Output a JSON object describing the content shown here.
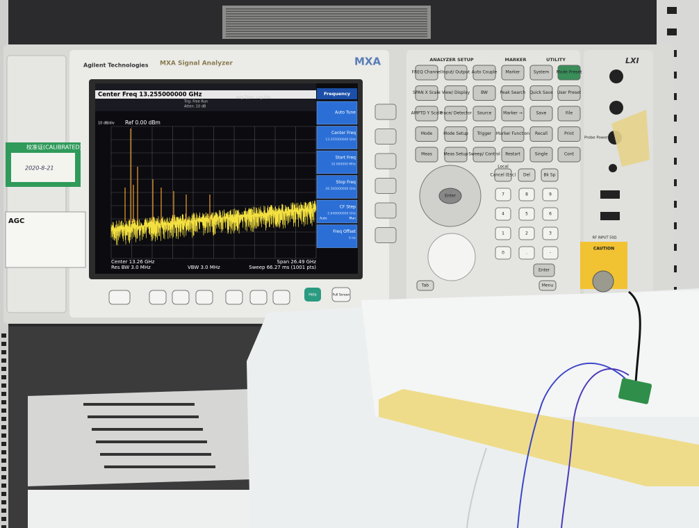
{
  "instrument": {
    "brand": "Agilent Technologies",
    "model_name": "MXA Signal Analyzer",
    "model": "MXA",
    "lxi": "LXI"
  },
  "screen": {
    "header": "Center Freq 13.255000000 GHz",
    "trigger": "Trig: Free Run",
    "atten": "Atten: 10 dB",
    "avg_type": "Avg Type: Log-Pwr",
    "ref_level": "Ref 0.00 dBm",
    "scale": "10 dB/div",
    "center": "Center 13.26 GHz",
    "res_bw": "Res BW 3.0 MHz",
    "vbw": "VBW 3.0 MHz",
    "span": "Span 26.49 GHz",
    "sweep": "Sweep 66.27 ms (1001 pts)"
  },
  "softkeys": {
    "title": "Frequency",
    "items": [
      {
        "label": "Auto Tune"
      },
      {
        "label": "Center Freq",
        "value": "13.255000000 GHz"
      },
      {
        "label": "Start Freq",
        "value": "10.000000 MHz"
      },
      {
        "label": "Stop Freq",
        "value": "26.500000000 GHz"
      },
      {
        "label": "CF Step",
        "value": "2.649000000 GHz",
        "mode": [
          "Auto",
          "Man"
        ]
      },
      {
        "label": "Freq Offset",
        "value": "0 Hz"
      }
    ]
  },
  "panel": {
    "sections": [
      "ANALYZER SETUP",
      "MARKER",
      "UTILITY"
    ],
    "keys": [
      [
        "FREQ Channel",
        "Input/ Output",
        "Auto Couple",
        "Marker",
        "System",
        "Mode Preset"
      ],
      [
        "SPAN X Scale",
        "View/ Display",
        "BW",
        "Peak Search",
        "Quick Save",
        "User Preset"
      ],
      [
        "AMPTD Y Scale",
        "Trace/ Detector",
        "Source",
        "Marker →",
        "Save",
        "File"
      ],
      [
        "Mode",
        "Mode Setup",
        "Trigger",
        "Marker Function",
        "Recall",
        "Print"
      ],
      [
        "Meas",
        "Meas Setup",
        "Sweep/ Control",
        "Restart",
        "Single",
        "Cont"
      ]
    ],
    "edit_keys": [
      "Local",
      "Cancel (Esc)",
      "Del",
      "Bk Sp"
    ],
    "keypad": [
      [
        "7",
        "8",
        "9"
      ],
      [
        "4",
        "5",
        "6"
      ],
      [
        "1",
        "2",
        "3"
      ],
      [
        "0",
        ".",
        "-"
      ]
    ],
    "enter": "Enter",
    "knob_enter": "Enter",
    "tab": "Tab",
    "menu": "Menu",
    "help": "Help",
    "full_screen": "Full Screen",
    "probe_power": "Probe Power",
    "rf_input": "RF INPUT 50Ω",
    "caution": "CAUTION"
  },
  "stickers": {
    "calibration": "校准证(CALIBRATED)",
    "date": "2020-8-21",
    "asset_brand": "AGC"
  }
}
